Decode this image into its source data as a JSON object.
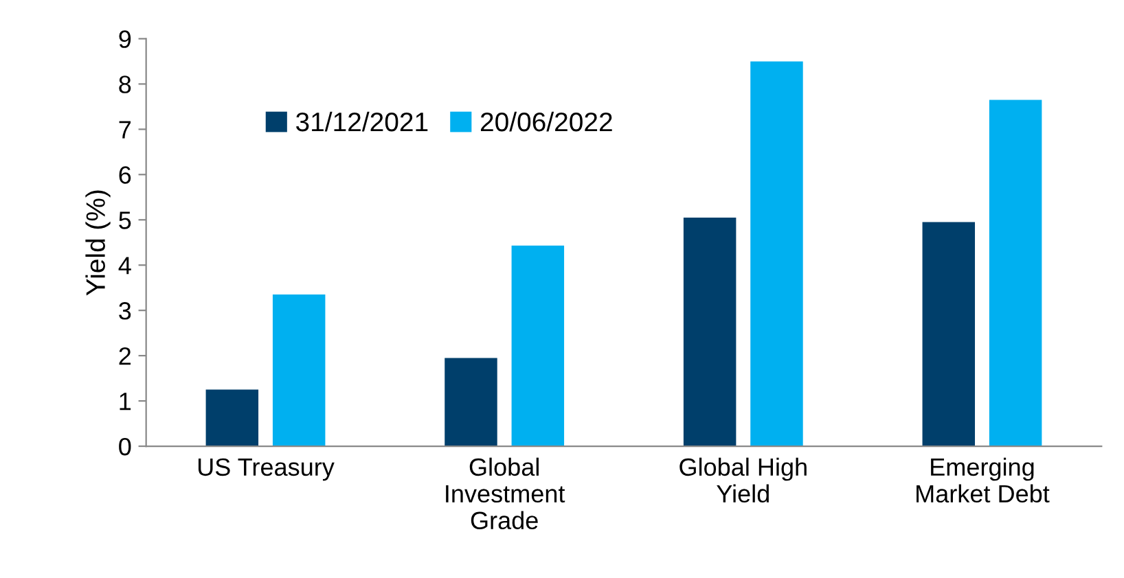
{
  "chart_data": {
    "type": "bar",
    "ylabel": "Yield (%)",
    "categories": [
      "US Treasury",
      "Global\nInvestment\nGrade",
      "Global High\nYield",
      "Emerging\nMarket Debt"
    ],
    "series": [
      {
        "name": "31/12/2021",
        "color": "#003f6b",
        "values": [
          1.25,
          1.95,
          5.05,
          4.95
        ]
      },
      {
        "name": "20/06/2022",
        "color": "#00b0f0",
        "values": [
          3.35,
          4.43,
          8.5,
          7.65
        ]
      }
    ],
    "ylim": [
      0,
      9
    ],
    "yticks": [
      0,
      1,
      2,
      3,
      4,
      5,
      6,
      7,
      8,
      9
    ],
    "grid": false,
    "legend": "top left"
  }
}
